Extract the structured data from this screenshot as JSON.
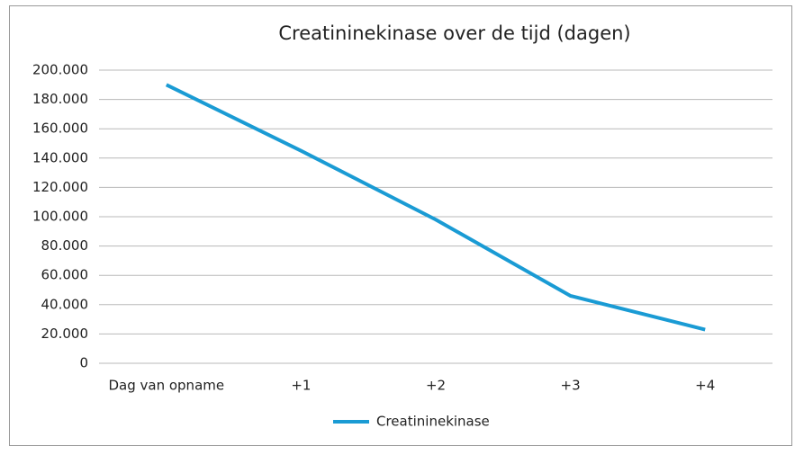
{
  "chart_data": {
    "type": "line",
    "title": "Creatininekinase over de tijd (dagen)",
    "categories": [
      "Dag van opname",
      "+1",
      "+2",
      "+3",
      "+4"
    ],
    "series": [
      {
        "name": "Creatininekinase",
        "color": "#1a9bd4",
        "values": [
          190000,
          145000,
          98000,
          46000,
          23000
        ]
      }
    ],
    "ylim": [
      0,
      200000
    ],
    "yticks": [
      0,
      {
        "value": 20000,
        "label": "20.000"
      },
      {
        "value": 40000,
        "label": "40.000"
      },
      {
        "value": 60000,
        "label": "60.000"
      },
      {
        "value": 80000,
        "label": "80.000"
      },
      {
        "value": 100000,
        "label": "100.000"
      },
      {
        "value": 120000,
        "label": "120.000"
      },
      {
        "value": 140000,
        "label": "140.000"
      },
      {
        "value": 160000,
        "label": "160.000"
      },
      {
        "value": 180000,
        "label": "180.000"
      },
      {
        "value": 200000,
        "label": "200.000"
      }
    ],
    "grid": true,
    "legend": "bottom"
  }
}
